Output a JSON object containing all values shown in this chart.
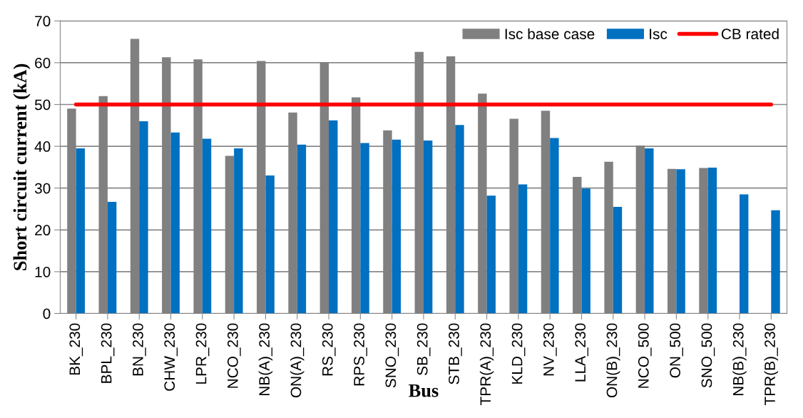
{
  "chart_data": {
    "type": "bar",
    "xlabel": "Bus",
    "ylabel": "Short circuit current (kA)",
    "categories": [
      "BK_230",
      "BPL_230",
      "BN_230",
      "CHW_230",
      "LPR_230",
      "NCO_230",
      "NB(A)_230",
      "ON(A)_230",
      "RS_230",
      "RPS_230",
      "SNO_230",
      "SB_230",
      "STB_230",
      "TPR(A)_230",
      "KLD_230",
      "NV_230",
      "LLA_230",
      "ON(B)_230",
      "NCO_500",
      "ON_500",
      "SNO_500",
      "NB(B)_230",
      "TPR(B)_230"
    ],
    "series": [
      {
        "name": "Isc base case",
        "color": "#808080",
        "values": [
          49,
          52,
          65.7,
          61.3,
          60.8,
          37.7,
          60.4,
          48.1,
          60.1,
          51.7,
          43.8,
          62.6,
          61.5,
          52.6,
          46.6,
          48.5,
          32.7,
          36.3,
          40.2,
          34.6,
          34.8,
          null,
          null
        ]
      },
      {
        "name": "Isc",
        "color": "#0070c0",
        "values": [
          39.5,
          26.7,
          46,
          43.3,
          41.8,
          39.5,
          33,
          40.4,
          46.2,
          40.8,
          41.6,
          41.4,
          45.1,
          28.2,
          30.9,
          42,
          29.9,
          25.5,
          39.5,
          34.5,
          34.9,
          28.5,
          24.7
        ]
      },
      {
        "name": "CB rated",
        "type": "line",
        "color": "#ff0000",
        "values": [
          50,
          50,
          50,
          50,
          50,
          50,
          50,
          50,
          50,
          50,
          50,
          50,
          50,
          50,
          50,
          50,
          50,
          50,
          50,
          50,
          50,
          50,
          50
        ]
      }
    ],
    "ylim": [
      0,
      70
    ],
    "yticks": [
      0,
      10,
      20,
      30,
      40,
      50,
      60,
      70
    ],
    "grid": "y",
    "legend": "top right"
  }
}
